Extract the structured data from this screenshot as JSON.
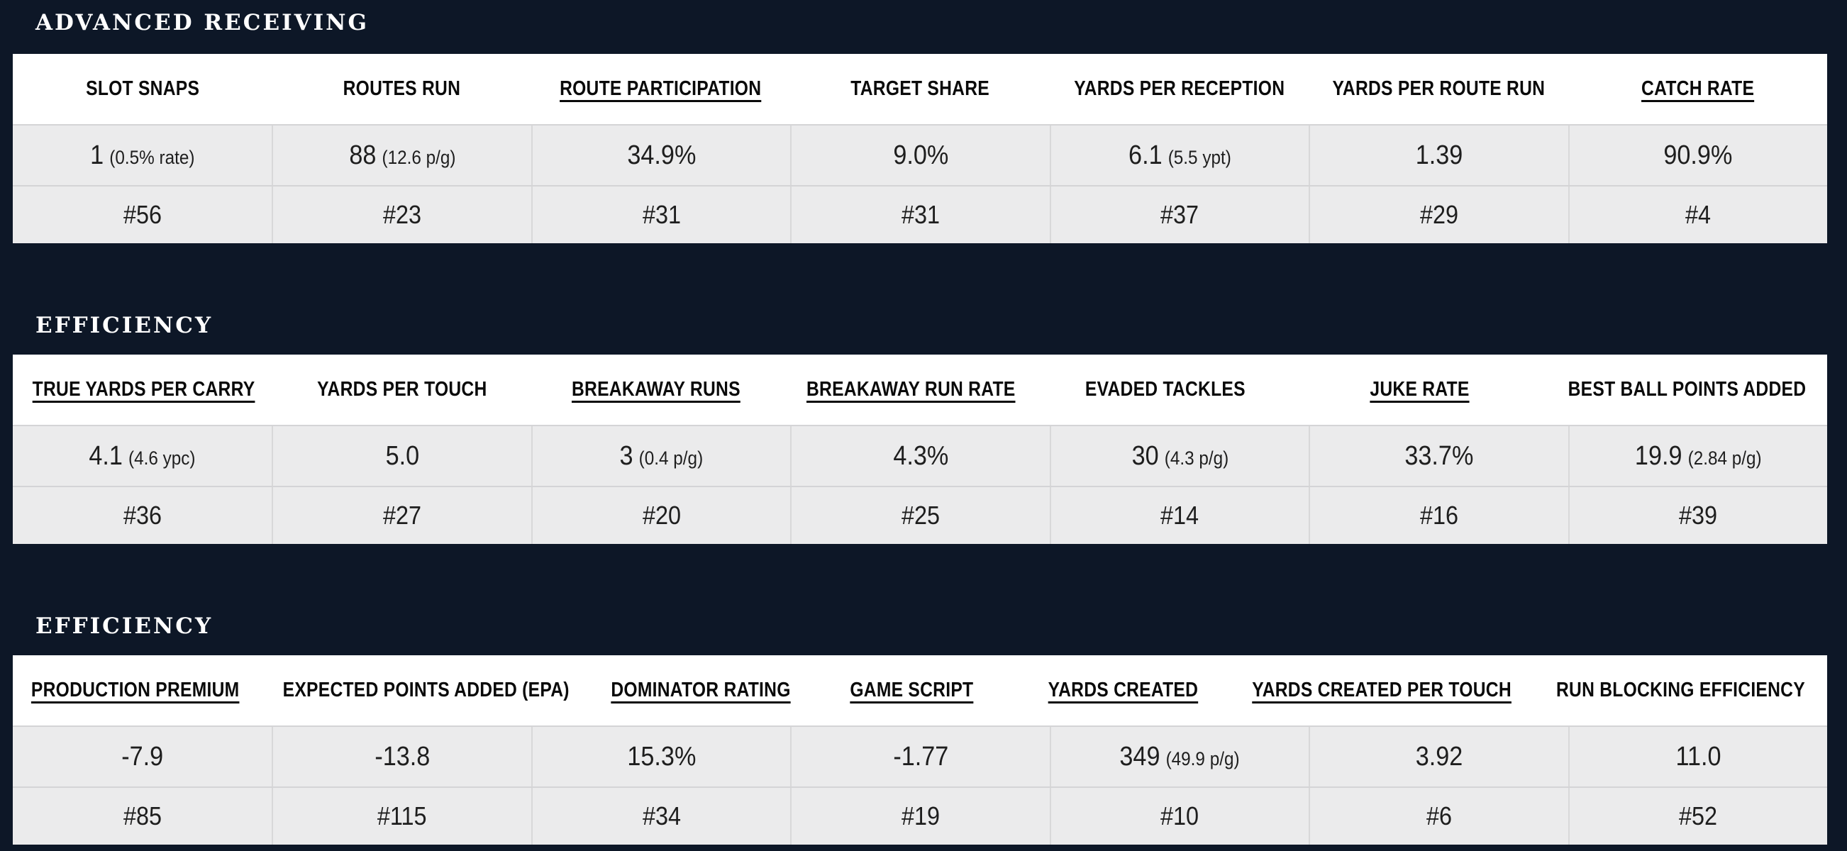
{
  "colors": {
    "background": "#0d1727",
    "table_header_bg": "#ffffff",
    "cell_bg": "#ebebec",
    "divider": "#d4d4d6",
    "header_text": "#0a0a0a",
    "value_text": "#1e1e1e",
    "title_text": "#ffffff"
  },
  "sections": [
    {
      "title": "ADVANCED RECEIVING",
      "columns": [
        {
          "label": "SLOT SNAPS",
          "underlined": false,
          "value": "1",
          "note": "(0.5% rate)",
          "rank": "#56"
        },
        {
          "label": "ROUTES RUN",
          "underlined": false,
          "value": "88",
          "note": "(12.6 p/g)",
          "rank": "#23"
        },
        {
          "label": "ROUTE PARTICIPATION",
          "underlined": true,
          "value": "34.9%",
          "note": "",
          "rank": "#31"
        },
        {
          "label": "TARGET SHARE",
          "underlined": false,
          "value": "9.0%",
          "note": "",
          "rank": "#31"
        },
        {
          "label": "YARDS PER RECEPTION",
          "underlined": false,
          "value": "6.1",
          "note": "(5.5 ypt)",
          "rank": "#37"
        },
        {
          "label": "YARDS PER ROUTE RUN",
          "underlined": false,
          "value": "1.39",
          "note": "",
          "rank": "#29"
        },
        {
          "label": "CATCH RATE",
          "underlined": true,
          "value": "90.9%",
          "note": "",
          "rank": "#4"
        }
      ]
    },
    {
      "title": "EFFICIENCY",
      "columns": [
        {
          "label": "TRUE YARDS PER CARRY",
          "underlined": true,
          "value": "4.1",
          "note": "(4.6 ypc)",
          "rank": "#36"
        },
        {
          "label": "YARDS PER TOUCH",
          "underlined": false,
          "value": "5.0",
          "note": "",
          "rank": "#27"
        },
        {
          "label": "BREAKAWAY RUNS",
          "underlined": true,
          "value": "3",
          "note": "(0.4 p/g)",
          "rank": "#20"
        },
        {
          "label": "BREAKAWAY RUN RATE",
          "underlined": true,
          "value": "4.3%",
          "note": "",
          "rank": "#25"
        },
        {
          "label": "EVADED TACKLES",
          "underlined": false,
          "value": "30",
          "note": "(4.3 p/g)",
          "rank": "#14"
        },
        {
          "label": "JUKE RATE",
          "underlined": true,
          "value": "33.7%",
          "note": "",
          "rank": "#16"
        },
        {
          "label": "BEST BALL POINTS ADDED",
          "underlined": false,
          "value": "19.9",
          "note": "(2.84 p/g)",
          "rank": "#39"
        }
      ]
    },
    {
      "title": "EFFICIENCY",
      "columns": [
        {
          "label": "PRODUCTION PREMIUM",
          "underlined": true,
          "value": "-7.9",
          "note": "",
          "rank": "#85"
        },
        {
          "label": "EXPECTED POINTS ADDED (EPA)",
          "underlined": false,
          "value": "-13.8",
          "note": "",
          "rank": "#115"
        },
        {
          "label": "DOMINATOR RATING",
          "underlined": true,
          "value": "15.3%",
          "note": "",
          "rank": "#34"
        },
        {
          "label": "GAME SCRIPT",
          "underlined": true,
          "value": "-1.77",
          "note": "",
          "rank": "#19"
        },
        {
          "label": "YARDS CREATED",
          "underlined": true,
          "value": "349",
          "note": "(49.9 p/g)",
          "rank": "#10"
        },
        {
          "label": "YARDS CREATED PER TOUCH",
          "underlined": true,
          "value": "3.92",
          "note": "",
          "rank": "#6"
        },
        {
          "label": "RUN BLOCKING EFFICIENCY",
          "underlined": false,
          "value": "11.0",
          "note": "",
          "rank": "#52"
        }
      ]
    }
  ]
}
